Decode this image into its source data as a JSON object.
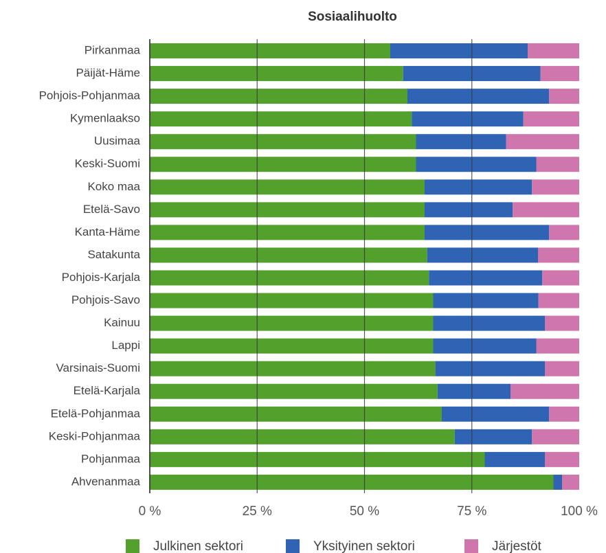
{
  "chart_data": {
    "type": "stacked_barh",
    "title": "Sosiaalihuolto",
    "categories": [
      "Pirkanmaa",
      "Päijät-Häme",
      "Pohjois-Pohjanmaa",
      "Kymenlaakso",
      "Uusimaa",
      "Keski-Suomi",
      "Koko maa",
      "Etelä-Savo",
      "Kanta-Häme",
      "Satakunta",
      "Pohjois-Karjala",
      "Pohjois-Savo",
      "Kainuu",
      "Lappi",
      "Varsinais-Suomi",
      "Etelä-Karjala",
      "Etelä-Pohjanmaa",
      "Keski-Pohjanmaa",
      "Pohjanmaa",
      "Ahvenanmaa"
    ],
    "series": [
      {
        "name": "Julkinen sektori",
        "color": "#53a02c",
        "values": [
          56,
          59,
          60,
          61,
          62,
          62,
          64,
          64,
          64,
          64.6,
          65,
          66,
          66,
          66,
          66.5,
          67,
          68,
          71,
          78,
          94
        ]
      },
      {
        "name": "Yksityinen sektori",
        "color": "#2f63b4",
        "values": [
          32,
          32,
          33,
          26,
          21,
          28,
          25,
          20.5,
          29,
          25.8,
          26.4,
          24.5,
          26,
          24,
          25.5,
          17,
          25,
          18,
          14,
          2
        ]
      },
      {
        "name": "Järjestöt",
        "color": "#cf76ad",
        "values": [
          12,
          9,
          7,
          13,
          17,
          10,
          11,
          15.5,
          7,
          9.6,
          8.6,
          9.5,
          8,
          10,
          8,
          16,
          7,
          11,
          8,
          4
        ]
      }
    ],
    "xlim": [
      0,
      100
    ],
    "xticks": [
      {
        "value": 0,
        "label": "0 %"
      },
      {
        "value": 25,
        "label": "25 %"
      },
      {
        "value": 50,
        "label": "50 %"
      },
      {
        "value": 75,
        "label": "75 %"
      },
      {
        "value": 100,
        "label": "100 %"
      }
    ],
    "grid": true,
    "legend": "bottom"
  }
}
